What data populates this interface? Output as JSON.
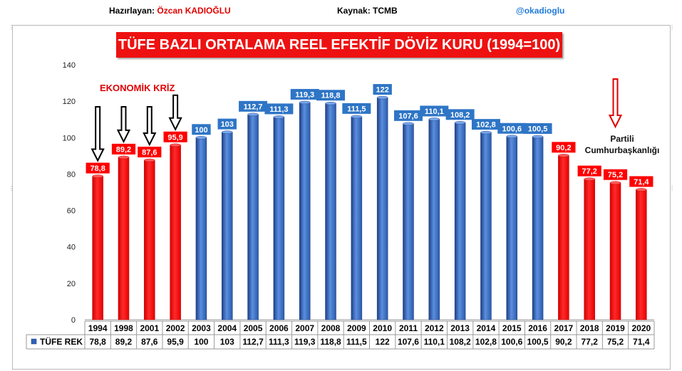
{
  "header": {
    "prepared_by_label": "Hazırlayan:",
    "prepared_by_name": "Özcan KADIOĞLU",
    "source": "Kaynak: TCMB",
    "twitter": "@okadioglu"
  },
  "annotations": {
    "crisis": "EKONOMİK KRİZ",
    "partisan_line1": "Partili",
    "partisan_line2": "Cumhurbaşkanlığı"
  },
  "colors": {
    "red": "#ff0000",
    "blue": "#2f62b8",
    "blue_label": "#2e75c6",
    "title_bg": "#ee1111"
  },
  "chart_data": {
    "type": "bar",
    "title": "TÜFE BAZLI ORTALAMA REEL EFEKTİF  DÖVİZ KURU (1994=100)",
    "categories": [
      "1994",
      "1998",
      "2001",
      "2002",
      "2003",
      "2004",
      "2005",
      "2006",
      "2007",
      "2008",
      "2009",
      "2010",
      "2011",
      "2012",
      "2013",
      "2014",
      "2015",
      "2016",
      "2017",
      "2018",
      "2019",
      "2020"
    ],
    "series": [
      {
        "name": "TÜFE REK",
        "values": [
          78.8,
          89.2,
          87.6,
          95.9,
          100,
          103,
          112.7,
          111.3,
          119.3,
          118.8,
          111.5,
          122,
          107.6,
          110.1,
          108.2,
          102.8,
          100.6,
          100.5,
          90.2,
          77.2,
          75.2,
          71.4
        ],
        "value_labels": [
          "78,8",
          "89,2",
          "87,6",
          "95,9",
          "100",
          "103",
          "112,7",
          "111,3",
          "119,3",
          "118,8",
          "111,5",
          "122",
          "107,6",
          "110,1",
          "108,2",
          "102,8",
          "100,6",
          "100,5",
          "90,2",
          "77,2",
          "75,2",
          "71,4"
        ],
        "bar_colors": [
          "red",
          "red",
          "red",
          "red",
          "blue",
          "blue",
          "blue",
          "blue",
          "blue",
          "blue",
          "blue",
          "blue",
          "blue",
          "blue",
          "blue",
          "blue",
          "blue",
          "blue",
          "red",
          "red",
          "red",
          "red"
        ]
      }
    ],
    "ylim": [
      0,
      140
    ],
    "yticks": [
      0,
      20,
      40,
      60,
      80,
      100,
      120,
      140
    ],
    "grid": false,
    "legend": "data-table-bottom",
    "crisis_arrow_years": [
      "1994",
      "1998",
      "2001",
      "2002"
    ],
    "partisan_arrow_year": "2019"
  }
}
